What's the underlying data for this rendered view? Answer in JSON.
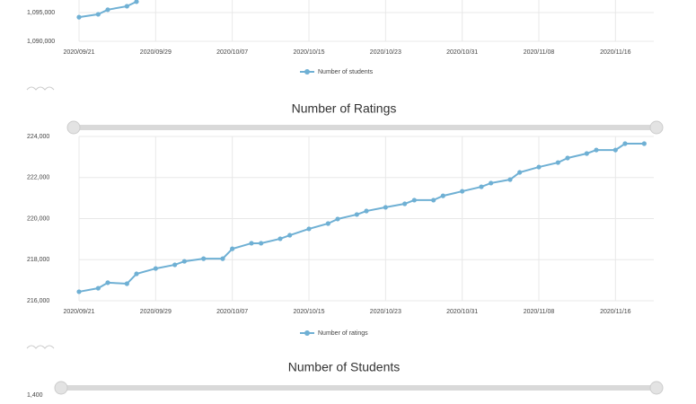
{
  "chart_data": [
    {
      "type": "line",
      "x": [
        "2020/09/21",
        "2020/09/23",
        "2020/09/24",
        "2020/09/26",
        "2020/09/27"
      ],
      "series": [
        {
          "name": "Number of students",
          "color": "#6fb0d4",
          "values": [
            1094200,
            1094700,
            1095500,
            1096100,
            1096900
          ]
        }
      ],
      "xlim": [
        "2020/09/21",
        "2020/11/20"
      ],
      "xticks": [
        "2020/09/21",
        "2020/09/29",
        "2020/10/07",
        "2020/10/15",
        "2020/10/23",
        "2020/10/31",
        "2020/11/08",
        "2020/11/16"
      ],
      "ylim": [
        1090000,
        1100000
      ],
      "yticks": [
        {
          "value": 1090000,
          "label": "1,090,000"
        },
        {
          "value": 1095000,
          "label": "1,095,000"
        }
      ],
      "grid": true
    },
    {
      "type": "line",
      "title": "Number of Ratings",
      "x": [
        "2020/09/21",
        "2020/09/23",
        "2020/09/24",
        "2020/09/26",
        "2020/09/27",
        "2020/09/29",
        "2020/10/01",
        "2020/10/02",
        "2020/10/04",
        "2020/10/06",
        "2020/10/07",
        "2020/10/09",
        "2020/10/10",
        "2020/10/12",
        "2020/10/13",
        "2020/10/15",
        "2020/10/17",
        "2020/10/18",
        "2020/10/20",
        "2020/10/21",
        "2020/10/23",
        "2020/10/25",
        "2020/10/26",
        "2020/10/28",
        "2020/10/29",
        "2020/10/31",
        "2020/11/02",
        "2020/11/03",
        "2020/11/05",
        "2020/11/06",
        "2020/11/08",
        "2020/11/10",
        "2020/11/11",
        "2020/11/13",
        "2020/11/14",
        "2020/11/16",
        "2020/11/17",
        "2020/11/19"
      ],
      "series": [
        {
          "name": "Number of ratings",
          "color": "#6fb0d4",
          "values": [
            216440,
            216610,
            216880,
            216830,
            217310,
            217570,
            217750,
            217920,
            218050,
            218050,
            218530,
            218800,
            218800,
            219020,
            219190,
            219500,
            219760,
            219980,
            220200,
            220370,
            220550,
            220720,
            220900,
            220900,
            221110,
            221330,
            221550,
            221730,
            221900,
            222250,
            222510,
            222730,
            222950,
            223170,
            223340,
            223340,
            223650,
            223650
          ]
        }
      ],
      "xlim": [
        "2020/09/21",
        "2020/11/20"
      ],
      "xticks": [
        "2020/09/21",
        "2020/09/29",
        "2020/10/07",
        "2020/10/15",
        "2020/10/23",
        "2020/10/31",
        "2020/11/08",
        "2020/11/16"
      ],
      "ylim": [
        216000,
        224000
      ],
      "yticks": [
        {
          "value": 216000,
          "label": "216,000"
        },
        {
          "value": 218000,
          "label": "218,000"
        },
        {
          "value": 220000,
          "label": "220,000"
        },
        {
          "value": 222000,
          "label": "222,000"
        },
        {
          "value": 224000,
          "label": "224,000"
        }
      ],
      "grid": true
    },
    {
      "type": "line",
      "title": "Number of Students",
      "yticks": [
        {
          "value": 1400,
          "label": "1,400"
        }
      ]
    }
  ]
}
